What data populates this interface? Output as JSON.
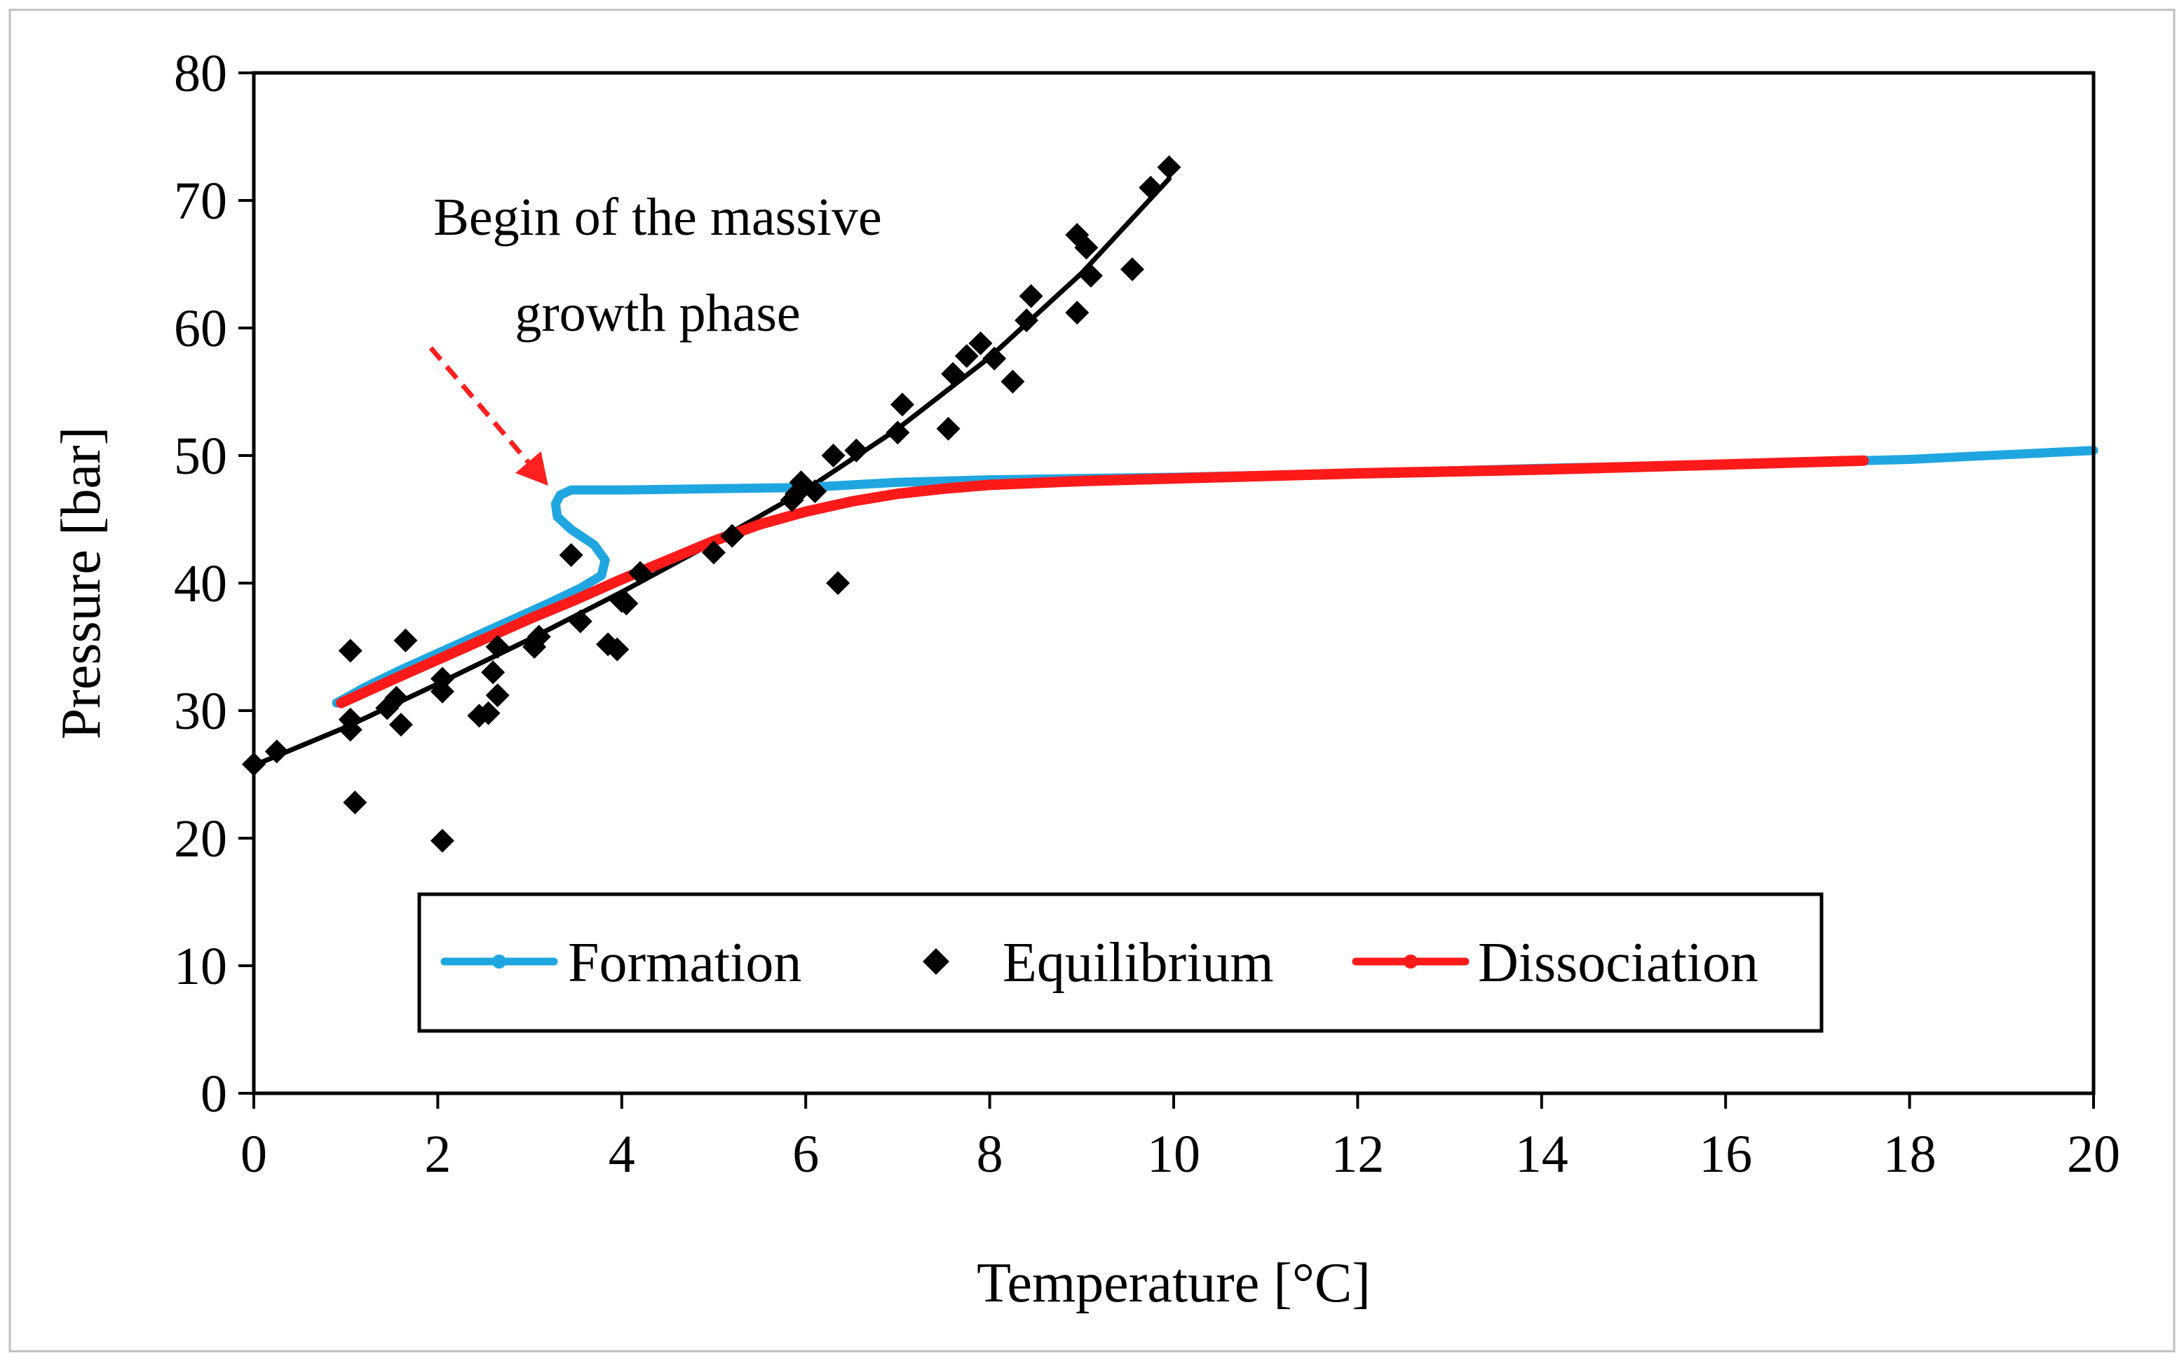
{
  "chart_data": {
    "type": "line",
    "title": "",
    "xlabel": "Temperature [°C]",
    "ylabel": "Pressure [bar]",
    "xlim": [
      0,
      20
    ],
    "ylim": [
      0,
      80
    ],
    "x_ticks": [
      0,
      2,
      4,
      6,
      8,
      10,
      12,
      14,
      16,
      18,
      20
    ],
    "y_ticks": [
      0,
      10,
      20,
      30,
      40,
      50,
      60,
      70,
      80
    ],
    "grid": false,
    "legend_position": "bottom-center",
    "annotation": {
      "lines": [
        "Begin of the massive",
        "growth phase"
      ],
      "arrow_color": "#ff2020",
      "arrow_tail": [
        2.0,
        58.0
      ],
      "arrow_head": [
        3.2,
        47.2
      ]
    },
    "series": [
      {
        "name": "Formation",
        "kind": "line",
        "color": "#1fa6e0",
        "x": [
          0.9,
          1.2,
          1.6,
          2.0,
          2.4,
          2.8,
          3.2,
          3.55,
          3.78,
          3.82,
          3.7,
          3.45,
          3.3,
          3.28,
          3.33,
          3.45,
          4.0,
          5.0,
          6.0,
          6.5,
          7.0,
          8.0,
          9.0,
          10.0,
          12.0,
          14.0,
          16.0,
          17.5,
          18.0,
          20.0
        ],
        "y": [
          30.6,
          31.8,
          33.2,
          34.5,
          35.8,
          37.1,
          38.4,
          39.6,
          40.6,
          41.8,
          43.0,
          44.2,
          45.2,
          46.2,
          46.9,
          47.3,
          47.3,
          47.4,
          47.5,
          47.7,
          47.9,
          48.1,
          48.2,
          48.3,
          48.6,
          49.0,
          49.3,
          49.6,
          49.7,
          50.4
        ]
      },
      {
        "name": "Equilibrium",
        "kind": "scatter",
        "color": "#000000",
        "x": [
          0.0,
          0.25,
          1.05,
          1.05,
          1.05,
          1.1,
          1.45,
          1.55,
          1.6,
          1.65,
          2.05,
          2.05,
          2.05,
          2.45,
          2.55,
          2.6,
          2.65,
          2.65,
          3.05,
          3.1,
          3.45,
          3.55,
          3.85,
          3.95,
          4.0,
          4.05,
          4.2,
          5.0,
          5.2,
          5.85,
          5.9,
          5.95,
          6.1,
          6.3,
          6.35,
          6.55,
          7.0,
          7.05,
          7.55,
          7.6,
          7.75,
          7.9,
          8.05,
          8.25,
          8.4,
          8.45,
          8.95,
          8.95,
          9.05,
          9.1,
          9.55,
          9.75,
          9.95
        ],
        "y": [
          25.8,
          26.8,
          34.7,
          29.3,
          28.5,
          22.8,
          30.2,
          31.0,
          28.9,
          35.5,
          31.5,
          32.5,
          19.8,
          29.6,
          29.8,
          33.0,
          31.2,
          35.0,
          35.0,
          35.8,
          42.2,
          37.0,
          35.2,
          34.8,
          38.6,
          38.4,
          40.8,
          42.4,
          43.7,
          46.5,
          47.0,
          47.9,
          47.2,
          50.0,
          40.0,
          50.4,
          51.8,
          54.0,
          52.1,
          56.4,
          57.8,
          58.8,
          57.6,
          55.8,
          60.6,
          62.5,
          61.2,
          67.3,
          66.3,
          64.1,
          64.6,
          71.0,
          72.6
        ]
      },
      {
        "name": "Equilibrium fit",
        "kind": "line",
        "color": "#000000",
        "in_legend": false,
        "x": [
          0.0,
          1.0,
          2.0,
          3.0,
          4.0,
          5.0,
          6.0,
          7.0,
          8.0,
          9.0,
          9.95
        ],
        "y": [
          25.7,
          28.7,
          32.1,
          35.6,
          39.3,
          43.2,
          47.3,
          52.1,
          57.7,
          64.3,
          71.7
        ]
      },
      {
        "name": "Dissociation",
        "kind": "line",
        "color": "#ff1a1a",
        "x": [
          0.95,
          1.5,
          2.0,
          2.5,
          3.0,
          3.5,
          4.0,
          4.5,
          5.0,
          5.5,
          6.0,
          6.5,
          7.0,
          7.5,
          8.0,
          9.0,
          10.0,
          12.0,
          14.0,
          16.0,
          17.5
        ],
        "y": [
          30.6,
          32.4,
          34.0,
          35.6,
          37.2,
          38.7,
          40.3,
          41.8,
          43.3,
          44.6,
          45.6,
          46.4,
          47.0,
          47.4,
          47.7,
          48.0,
          48.2,
          48.6,
          48.9,
          49.3,
          49.6
        ]
      }
    ]
  }
}
